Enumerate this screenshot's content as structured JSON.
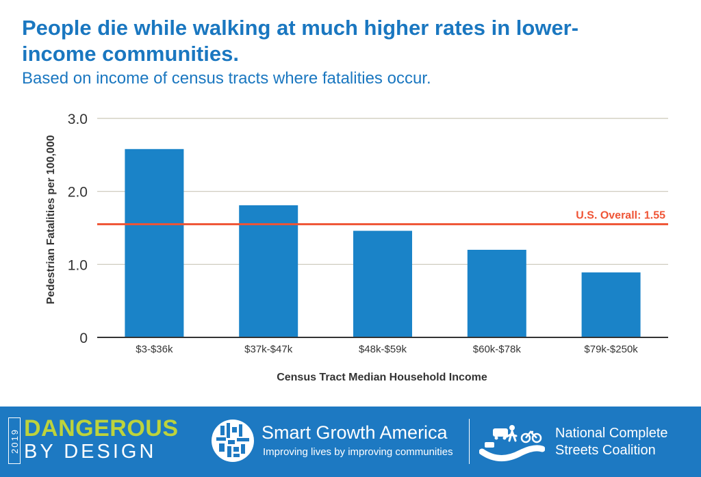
{
  "chart_data": {
    "type": "bar",
    "title": "People die while walking at much higher rates in lower-income communities.",
    "subtitle": "Based on income of census tracts where fatalities occur.",
    "xlabel": "Census Tract Median Household Income",
    "ylabel": "Pedestrian Fatalities per 100,000",
    "categories": [
      "$3-$36k",
      "$37k-$47k",
      "$48k-$59k",
      "$60k-$78k",
      "$79k-$250k"
    ],
    "values": [
      2.58,
      1.81,
      1.46,
      1.2,
      0.89
    ],
    "ylim": [
      0,
      3
    ],
    "yticks": [
      0,
      1,
      2,
      3
    ],
    "ytick_labels": [
      "0",
      "1.0",
      "2.0",
      "3.0"
    ],
    "grid": true,
    "reference_line": {
      "value": 1.55,
      "label": "U.S. Overall: 1.55"
    }
  },
  "colors": {
    "title": "#1a77c0",
    "bar": "#1a83c8",
    "reference_line": "#ef5435",
    "grid": "#c9c6b8",
    "axis": "#333333",
    "text": "#333333",
    "footer_bg": "#1d79c2",
    "dbd_green": "#bdd33c"
  },
  "footer": {
    "dbd_year": "2019",
    "dbd_top": "DANGEROUS",
    "dbd_bottom": "BY DESIGN",
    "sga_name": "Smart Growth America",
    "sga_tagline": "Improving lives by improving communities",
    "ncsc_name": "National Complete Streets Coalition"
  }
}
